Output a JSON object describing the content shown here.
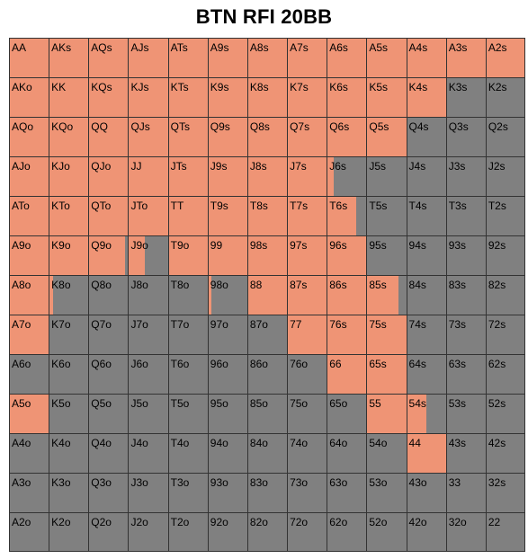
{
  "title": "BTN RFI 20BB",
  "colors": {
    "raise": "#ef9475",
    "fold": "#808080",
    "line": "#333333"
  },
  "chart_data": {
    "type": "heatmap",
    "title": "BTN RFI 20BB",
    "rows": [
      [
        [
          "AA",
          1
        ],
        [
          "AKs",
          1
        ],
        [
          "AQs",
          1
        ],
        [
          "AJs",
          1
        ],
        [
          "ATs",
          1
        ],
        [
          "A9s",
          1
        ],
        [
          "A8s",
          1
        ],
        [
          "A7s",
          1
        ],
        [
          "A6s",
          1
        ],
        [
          "A5s",
          1
        ],
        [
          "A4s",
          1
        ],
        [
          "A3s",
          1
        ],
        [
          "A2s",
          1
        ]
      ],
      [
        [
          "AKo",
          1
        ],
        [
          "KK",
          1
        ],
        [
          "KQs",
          1
        ],
        [
          "KJs",
          1
        ],
        [
          "KTs",
          1
        ],
        [
          "K9s",
          1
        ],
        [
          "K8s",
          1
        ],
        [
          "K7s",
          1
        ],
        [
          "K6s",
          1
        ],
        [
          "K5s",
          1
        ],
        [
          "K4s",
          1
        ],
        [
          "K3s",
          0
        ],
        [
          "K2s",
          0
        ]
      ],
      [
        [
          "AQo",
          1
        ],
        [
          "KQo",
          1
        ],
        [
          "QQ",
          1
        ],
        [
          "QJs",
          1
        ],
        [
          "QTs",
          1
        ],
        [
          "Q9s",
          1
        ],
        [
          "Q8s",
          1
        ],
        [
          "Q7s",
          1
        ],
        [
          "Q6s",
          1
        ],
        [
          "Q5s",
          1
        ],
        [
          "Q4s",
          0
        ],
        [
          "Q3s",
          0
        ],
        [
          "Q2s",
          0
        ]
      ],
      [
        [
          "AJo",
          1
        ],
        [
          "KJo",
          1
        ],
        [
          "QJo",
          1
        ],
        [
          "JJ",
          1
        ],
        [
          "JTs",
          1
        ],
        [
          "J9s",
          1
        ],
        [
          "J8s",
          1
        ],
        [
          "J7s",
          1
        ],
        [
          "J6s",
          0.18
        ],
        [
          "J5s",
          0
        ],
        [
          "J4s",
          0
        ],
        [
          "J3s",
          0
        ],
        [
          "J2s",
          0
        ]
      ],
      [
        [
          "ATo",
          1
        ],
        [
          "KTo",
          1
        ],
        [
          "QTo",
          1
        ],
        [
          "JTo",
          1
        ],
        [
          "TT",
          1
        ],
        [
          "T9s",
          1
        ],
        [
          "T8s",
          1
        ],
        [
          "T7s",
          1
        ],
        [
          "T6s",
          0.75
        ],
        [
          "T5s",
          0
        ],
        [
          "T4s",
          0
        ],
        [
          "T3s",
          0
        ],
        [
          "T2s",
          0
        ]
      ],
      [
        [
          "A9o",
          1
        ],
        [
          "K9o",
          1
        ],
        [
          "Q9o",
          0.92
        ],
        [
          "J9o",
          0.41
        ],
        [
          "T9o",
          1
        ],
        [
          "99",
          1
        ],
        [
          "98s",
          1
        ],
        [
          "97s",
          1
        ],
        [
          "96s",
          1
        ],
        [
          "95s",
          0
        ],
        [
          "94s",
          0
        ],
        [
          "93s",
          0
        ],
        [
          "92s",
          0
        ]
      ],
      [
        [
          "A8o",
          1
        ],
        [
          "K8o",
          0.1
        ],
        [
          "Q8o",
          0
        ],
        [
          "J8o",
          0
        ],
        [
          "T8o",
          0
        ],
        [
          "98o",
          0.1
        ],
        [
          "88",
          1
        ],
        [
          "87s",
          1
        ],
        [
          "86s",
          1
        ],
        [
          "85s",
          0.8
        ],
        [
          "84s",
          0
        ],
        [
          "83s",
          0
        ],
        [
          "82s",
          0
        ]
      ],
      [
        [
          "A7o",
          1
        ],
        [
          "K7o",
          0
        ],
        [
          "Q7o",
          0
        ],
        [
          "J7o",
          0
        ],
        [
          "T7o",
          0
        ],
        [
          "97o",
          0
        ],
        [
          "87o",
          0
        ],
        [
          "77",
          1
        ],
        [
          "76s",
          1
        ],
        [
          "75s",
          1
        ],
        [
          "74s",
          0
        ],
        [
          "73s",
          0
        ],
        [
          "72s",
          0
        ]
      ],
      [
        [
          "A6o",
          0
        ],
        [
          "K6o",
          0
        ],
        [
          "Q6o",
          0
        ],
        [
          "J6o",
          0
        ],
        [
          "T6o",
          0
        ],
        [
          "96o",
          0
        ],
        [
          "86o",
          0
        ],
        [
          "76o",
          0
        ],
        [
          "66",
          1
        ],
        [
          "65s",
          1
        ],
        [
          "64s",
          0
        ],
        [
          "63s",
          0
        ],
        [
          "62s",
          0
        ]
      ],
      [
        [
          "A5o",
          1
        ],
        [
          "K5o",
          0
        ],
        [
          "Q5o",
          0
        ],
        [
          "J5o",
          0
        ],
        [
          "T5o",
          0
        ],
        [
          "95o",
          0
        ],
        [
          "85o",
          0
        ],
        [
          "75o",
          0
        ],
        [
          "65o",
          0
        ],
        [
          "55",
          1
        ],
        [
          "54s",
          0.5
        ],
        [
          "53s",
          0
        ],
        [
          "52s",
          0
        ]
      ],
      [
        [
          "A4o",
          0
        ],
        [
          "K4o",
          0
        ],
        [
          "Q4o",
          0
        ],
        [
          "J4o",
          0
        ],
        [
          "T4o",
          0
        ],
        [
          "94o",
          0
        ],
        [
          "84o",
          0
        ],
        [
          "74o",
          0
        ],
        [
          "64o",
          0
        ],
        [
          "54o",
          0
        ],
        [
          "44",
          1
        ],
        [
          "43s",
          0
        ],
        [
          "42s",
          0
        ]
      ],
      [
        [
          "A3o",
          0
        ],
        [
          "K3o",
          0
        ],
        [
          "Q3o",
          0
        ],
        [
          "J3o",
          0
        ],
        [
          "T3o",
          0
        ],
        [
          "93o",
          0
        ],
        [
          "83o",
          0
        ],
        [
          "73o",
          0
        ],
        [
          "63o",
          0
        ],
        [
          "53o",
          0
        ],
        [
          "43o",
          0
        ],
        [
          "33",
          0
        ],
        [
          "32s",
          0
        ]
      ],
      [
        [
          "A2o",
          0
        ],
        [
          "K2o",
          0
        ],
        [
          "Q2o",
          0
        ],
        [
          "J2o",
          0
        ],
        [
          "T2o",
          0
        ],
        [
          "92o",
          0
        ],
        [
          "82o",
          0
        ],
        [
          "72o",
          0
        ],
        [
          "62o",
          0
        ],
        [
          "52o",
          0
        ],
        [
          "42o",
          0
        ],
        [
          "32o",
          0
        ],
        [
          "22",
          0
        ]
      ]
    ]
  }
}
